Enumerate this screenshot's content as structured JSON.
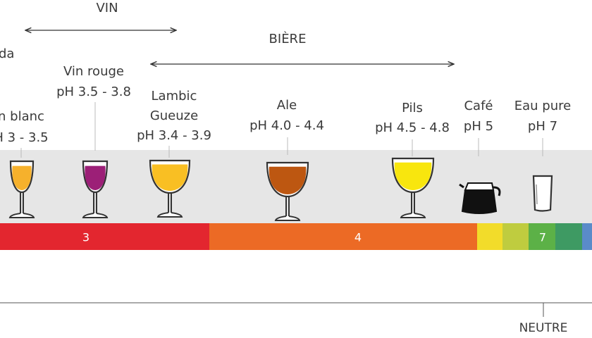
{
  "groups": {
    "wine": "VIN",
    "beer": "BIÈRE",
    "soda": "da"
  },
  "drinks": [
    {
      "name": "n blanc",
      "ph": "H 3 - 3.5"
    },
    {
      "name": "Vin rouge",
      "ph": "pH 3.5 - 3.8"
    },
    {
      "name": "Lambic\nGueuze",
      "ph": "pH 3.4 - 3.9"
    },
    {
      "name": "Ale",
      "ph": "pH 4.0 - 4.4"
    },
    {
      "name": "Pils",
      "ph": "pH 4.5 - 4.8"
    },
    {
      "name": "Café",
      "ph": "pH 5"
    },
    {
      "name": "Eau pure",
      "ph": "pH 7"
    }
  ],
  "scale": {
    "labels": [
      "3",
      "4",
      "7"
    ]
  },
  "axis": {
    "neutral": "NEUTRE"
  }
}
